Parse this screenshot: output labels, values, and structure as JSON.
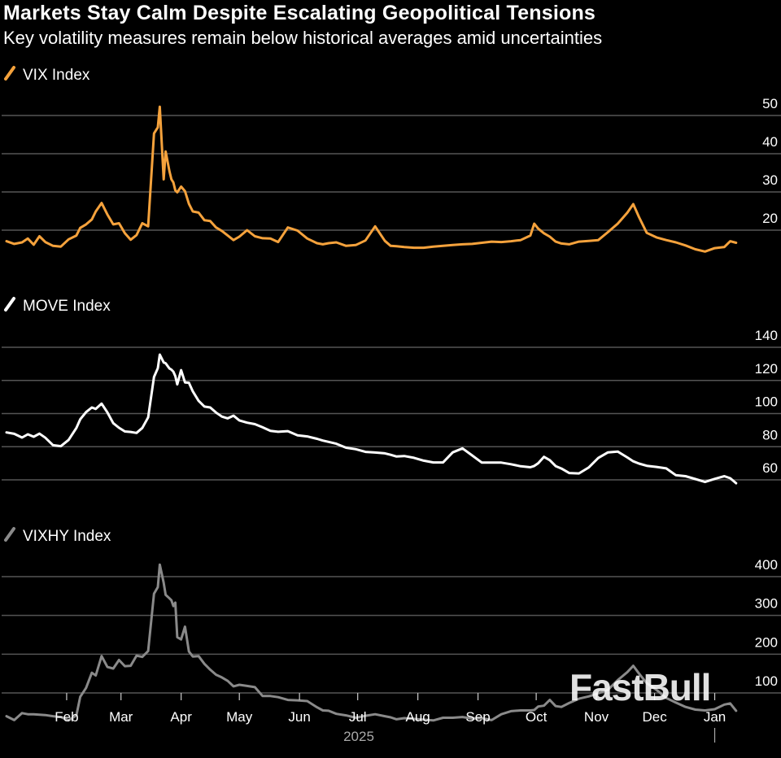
{
  "header": {
    "title": "Markets Stay Calm Despite Escalating Geopolitical Tensions",
    "subtitle": "Key volatility measures remain below historical averages amid uncertainties"
  },
  "watermark": "FastBull",
  "chart_data": {
    "type": "line",
    "x_axis": {
      "month_labels": [
        "Feb",
        "Mar",
        "Apr",
        "May",
        "Jun",
        "Jul",
        "Aug",
        "Sep",
        "Oct",
        "Nov",
        "Dec",
        "Jan"
      ],
      "year_label": "2025",
      "month_starts": [
        31,
        59,
        90,
        120,
        151,
        181,
        212,
        243,
        273,
        304,
        334,
        365
      ],
      "range": [
        0,
        380
      ]
    },
    "grid": true,
    "panels": [
      {
        "name": "VIX Index",
        "color": "#f5a23c",
        "ylim": [
          10,
          55
        ],
        "yticks": [
          20,
          30,
          40,
          50
        ],
        "x": [
          0,
          4,
          8,
          11,
          14,
          17,
          20,
          24,
          28,
          32,
          36,
          38,
          41,
          44,
          46,
          49,
          52,
          55,
          58,
          61,
          64,
          67,
          70,
          73,
          76,
          78,
          79,
          81,
          82,
          84,
          85,
          86,
          87,
          88,
          90,
          92,
          94,
          96,
          99,
          102,
          105,
          108,
          111,
          114,
          117,
          120,
          124,
          128,
          132,
          136,
          140,
          145,
          150,
          155,
          160,
          163,
          166,
          170,
          175,
          180,
          185,
          190,
          195,
          198,
          201,
          205,
          210,
          215,
          220,
          225,
          230,
          235,
          240,
          245,
          250,
          255,
          260,
          265,
          270,
          272,
          274,
          277,
          280,
          283,
          286,
          290,
          295,
          300,
          305,
          310,
          315,
          320,
          323,
          326,
          330,
          335,
          340,
          345,
          350,
          355,
          360,
          365,
          370,
          373,
          376
        ],
        "values": [
          17.1,
          16.4,
          16.8,
          17.8,
          16.2,
          18.4,
          16.9,
          15.9,
          15.7,
          17.6,
          18.6,
          20.6,
          21.5,
          22.8,
          24.9,
          27.1,
          24.1,
          21.5,
          21.8,
          19.2,
          17.5,
          18.7,
          21.8,
          21.0,
          45.3,
          46.9,
          52.3,
          33.3,
          40.6,
          35.4,
          33.3,
          32.5,
          30.4,
          29.9,
          31.4,
          30.2,
          26.9,
          24.9,
          24.6,
          22.6,
          22.4,
          20.7,
          19.8,
          18.6,
          17.4,
          18.3,
          20.0,
          18.4,
          17.9,
          17.8,
          16.9,
          20.7,
          19.9,
          17.8,
          16.6,
          16.3,
          16.6,
          16.8,
          15.9,
          16.1,
          17.3,
          21.0,
          17.2,
          15.9,
          15.8,
          15.6,
          15.4,
          15.4,
          15.7,
          15.9,
          16.1,
          16.3,
          16.4,
          16.7,
          17.0,
          16.9,
          17.1,
          17.4,
          18.6,
          21.7,
          20.4,
          19.2,
          18.3,
          17.0,
          16.5,
          16.3,
          17.0,
          17.2,
          17.4,
          19.5,
          21.7,
          24.6,
          26.8,
          23.4,
          19.3,
          18.1,
          17.4,
          16.8,
          16.0,
          15.0,
          14.4,
          15.3,
          15.6,
          17.1,
          16.7
        ]
      },
      {
        "name": "MOVE Index",
        "color": "#ffffff",
        "ylim": [
          45,
          145
        ],
        "yticks": [
          60,
          80,
          100,
          120,
          140
        ],
        "x": [
          0,
          4,
          8,
          11,
          14,
          17,
          20,
          24,
          28,
          32,
          36,
          38,
          41,
          44,
          46,
          49,
          52,
          55,
          58,
          61,
          64,
          67,
          70,
          73,
          76,
          78,
          79,
          81,
          82,
          84,
          85,
          86,
          87,
          88,
          90,
          92,
          94,
          96,
          99,
          102,
          105,
          108,
          111,
          114,
          117,
          120,
          124,
          128,
          132,
          136,
          140,
          145,
          150,
          155,
          160,
          163,
          166,
          170,
          175,
          180,
          185,
          190,
          195,
          198,
          201,
          205,
          210,
          215,
          220,
          225,
          230,
          235,
          240,
          245,
          250,
          255,
          260,
          265,
          270,
          272,
          274,
          277,
          280,
          283,
          286,
          290,
          295,
          300,
          305,
          310,
          315,
          320,
          323,
          326,
          330,
          335,
          340,
          345,
          350,
          355,
          360,
          365,
          370,
          373,
          376
        ],
        "values": [
          88.6,
          87.8,
          85.5,
          87.5,
          86.0,
          87.9,
          85.4,
          80.9,
          80.3,
          84.1,
          91.3,
          96.5,
          100.9,
          103.7,
          102.8,
          106.0,
          100.7,
          94.2,
          91.4,
          89.2,
          88.9,
          88.3,
          91.3,
          97.7,
          122.1,
          127.4,
          135.6,
          130.8,
          130.4,
          127.2,
          126.5,
          125.3,
          122.6,
          117.6,
          126.2,
          118.8,
          118.6,
          113.4,
          107.7,
          104.2,
          103.7,
          100.6,
          98.2,
          97.1,
          98.7,
          95.9,
          94.5,
          93.6,
          91.7,
          89.6,
          89.0,
          89.4,
          86.9,
          86.2,
          84.8,
          83.7,
          82.9,
          81.8,
          79.4,
          78.5,
          76.9,
          76.5,
          76.0,
          75.1,
          74.1,
          74.4,
          73.3,
          71.6,
          70.5,
          70.5,
          76.6,
          79.0,
          74.7,
          70.4,
          70.4,
          70.4,
          69.4,
          68.2,
          67.6,
          68.4,
          70.0,
          73.9,
          71.9,
          68.3,
          66.8,
          64.1,
          63.9,
          67.4,
          73.2,
          76.6,
          77.1,
          73.5,
          71.2,
          69.8,
          68.5,
          67.8,
          66.9,
          62.8,
          62.2,
          60.5,
          58.7,
          60.6,
          62.2,
          61.0,
          58.0
        ]
      },
      {
        "name": "VIXHY Index",
        "color": "#8a8a8a",
        "ylim": [
          0,
          450
        ],
        "yticks": [
          100,
          200,
          300,
          400
        ],
        "x": [
          0,
          4,
          8,
          11,
          14,
          17,
          20,
          24,
          28,
          32,
          36,
          38,
          41,
          44,
          46,
          49,
          52,
          55,
          58,
          61,
          64,
          67,
          70,
          73,
          76,
          78,
          79,
          81,
          82,
          84,
          85,
          86,
          87,
          88,
          90,
          92,
          94,
          96,
          99,
          102,
          105,
          108,
          111,
          114,
          117,
          120,
          124,
          128,
          132,
          136,
          140,
          145,
          150,
          155,
          160,
          163,
          166,
          170,
          175,
          180,
          185,
          190,
          195,
          198,
          201,
          205,
          210,
          215,
          220,
          225,
          230,
          235,
          240,
          245,
          250,
          255,
          260,
          265,
          270,
          272,
          274,
          277,
          280,
          283,
          286,
          290,
          295,
          300,
          305,
          310,
          315,
          320,
          323,
          326,
          330,
          335,
          340,
          345,
          350,
          355,
          360,
          365,
          370,
          373,
          376
        ],
        "values": [
          40,
          30,
          48,
          45,
          45,
          44,
          43,
          40,
          38,
          29,
          42,
          90,
          113,
          152,
          145,
          195,
          167,
          163,
          185,
          169,
          170,
          196,
          193,
          208,
          356,
          373,
          431,
          384,
          353,
          344,
          339,
          324,
          333,
          244,
          238,
          271,
          207,
          194,
          195,
          175,
          160,
          147,
          140,
          131,
          117,
          121,
          118,
          115,
          92,
          92,
          89,
          82,
          81,
          79,
          63,
          55,
          54,
          46,
          42,
          36,
          41,
          45,
          40,
          37,
          32,
          35,
          33,
          31,
          29,
          36,
          36,
          38,
          34,
          35,
          30,
          45,
          53,
          55,
          55,
          56,
          65,
          67,
          82,
          66,
          64,
          74,
          85,
          91,
          99,
          108,
          133,
          154,
          170,
          150,
          125,
          108,
          87,
          75,
          64,
          57,
          55,
          58,
          70,
          73,
          54
        ]
      }
    ]
  }
}
